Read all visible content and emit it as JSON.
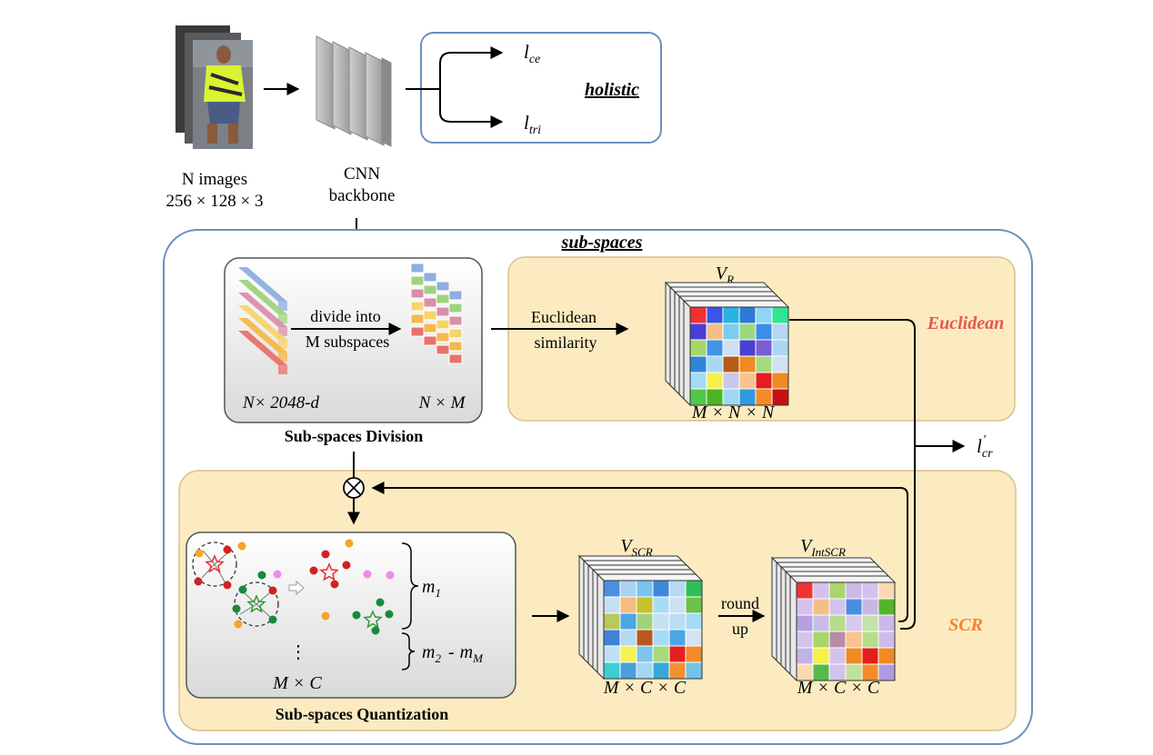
{
  "colors": {
    "panel_border": "#6b8fc1",
    "yellow_fill": "#fcebc0",
    "yellow_border": "#d8c28a",
    "euclidean_text": "#e8584d",
    "scr_text": "#f5842a"
  },
  "top": {
    "images_label": "N images",
    "images_dims": "256 × 128 × 3",
    "cnn_label_1": "CNN",
    "cnn_label_2": "backbone",
    "holistic": {
      "title": "holistic",
      "loss_ce": "l",
      "loss_ce_sub": "ce",
      "loss_tri": "l",
      "loss_tri_sub": "tri"
    }
  },
  "subspaces": {
    "title": "sub-spaces",
    "division": {
      "caption": "Sub-spaces Division",
      "arrow_text_1": "divide into",
      "arrow_text_2": "M subspaces",
      "left_dim": "N× 2048-d",
      "right_dim": "N × M"
    },
    "euclidean": {
      "title": "Euclidean",
      "arrow_text_1": "Euclidean",
      "arrow_text_2": "similarity",
      "matrix_label": "V",
      "matrix_label_sub": "R",
      "matrix_dims": "M × N × N"
    },
    "loss_cr": "l",
    "loss_cr_sub": "cr",
    "loss_cr_sup": "′",
    "scr": {
      "title": "SCR",
      "quant_caption": "Sub-spaces Quantization",
      "m1": "m",
      "m1_sub": "1",
      "m2": "m",
      "m2_sub": "2",
      "m_dash": "-",
      "mM": "m",
      "mM_sub": "M",
      "dots": "⋮",
      "quant_dims": "M × C",
      "vscr_label": "V",
      "vscr_sub": "SCR",
      "vscr_dims": "M × C × C",
      "round_1": "round",
      "round_2": "up",
      "vint_label": "V",
      "vint_sub": "IntSCR",
      "vint_dims": "M × C × C"
    }
  },
  "matrices": {
    "vr": [
      [
        "#ee3232",
        "#3b55e8",
        "#29b4e0",
        "#2f79d6",
        "#8fd6f5",
        "#2ee591"
      ],
      [
        "#4a3fd4",
        "#f4bf86",
        "#7bcdf0",
        "#9bd97f",
        "#3d8ce6",
        "#b7d6f0"
      ],
      [
        "#a9d56a",
        "#3f95e5",
        "#cfe0f3",
        "#4840d0",
        "#7a5ed0",
        "#a9d8f4"
      ],
      [
        "#2f85d8",
        "#a7d9f2",
        "#b55c17",
        "#f08a24",
        "#a6da80",
        "#cfe1f3"
      ],
      [
        "#a2dcf6",
        "#f5f04a",
        "#c7c7ec",
        "#f6c48c",
        "#e41d1d",
        "#f08a24"
      ],
      [
        "#52c84a",
        "#49b523",
        "#9fd7f2",
        "#2f9ae0",
        "#f58a2a",
        "#c81010"
      ]
    ],
    "vscr": [
      [
        "#4b90e0",
        "#a9d2f3",
        "#78c4ea",
        "#3f86dd",
        "#b9d9f2",
        "#2fbf58"
      ],
      [
        "#c6dff3",
        "#f5bc80",
        "#c4c12d",
        "#a6dcf5",
        "#cfe0f4",
        "#6cc24a"
      ],
      [
        "#b9c95b",
        "#49a7e8",
        "#a1d47a",
        "#c6e0f4",
        "#b9ddf2",
        "#a6daf5"
      ],
      [
        "#3f82d9",
        "#b4d9f3",
        "#b9581b",
        "#a6dcf5",
        "#49a7e8",
        "#d3e3f2"
      ],
      [
        "#c0dff4",
        "#f5f055",
        "#7ec3ec",
        "#a6da7c",
        "#e41f1f",
        "#f58a2a"
      ],
      [
        "#3ccfd0",
        "#4a9edb",
        "#a5d6f2",
        "#38a7d8",
        "#f5902f",
        "#6fc4ea"
      ]
    ],
    "vint": [
      [
        "#ee3232",
        "#d4c2ec",
        "#a9d56a",
        "#cdb8e8",
        "#d4c2ec",
        "#f9d9b0"
      ],
      [
        "#d4c2ec",
        "#f4bf86",
        "#d4c2ec",
        "#4a8ee0",
        "#c8b6e6",
        "#55b52a"
      ],
      [
        "#b6a0e0",
        "#c7bde8",
        "#b6dd8c",
        "#d8c7ee",
        "#c3e3a8",
        "#ccb6ea"
      ],
      [
        "#d5c5ec",
        "#a9d56a",
        "#b88ca8",
        "#f6c48c",
        "#b6dd8c",
        "#cdbce8"
      ],
      [
        "#c2b3e6",
        "#f5f04a",
        "#d4c2ec",
        "#f08a24",
        "#e41d1d",
        "#f08a24"
      ],
      [
        "#f9d9b0",
        "#56b94e",
        "#d4c2ec",
        "#bfe29e",
        "#f58a2a",
        "#b09be0"
      ]
    ]
  }
}
